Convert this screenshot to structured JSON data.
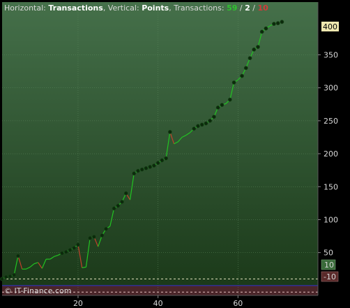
{
  "header": {
    "h_label": "Horizontal: ",
    "h_value": "Transactions",
    "v_label": ", Vertical: ",
    "v_value": "Points",
    "t_label": ", Transactions: ",
    "wins": "59",
    "sep1": " / ",
    "neutral": "2",
    "sep2": " / ",
    "losses": "10"
  },
  "footer": {
    "copyright": "© IT-Finance.com"
  },
  "colors": {
    "bg_top": "#45704a",
    "bg_bottom": "#1a3818",
    "loss_zone": "#4a2529",
    "up": "#22c422",
    "down": "#c2402a",
    "wins": "#2fc42f",
    "losses": "#d23a3a",
    "label_bg": "#f0e8b0",
    "zero_line": "#3030d0"
  },
  "chart_data": {
    "type": "line",
    "xlabel": "",
    "ylabel": "",
    "xlim": [
      1,
      80
    ],
    "ylim": [
      -15,
      430
    ],
    "x_ticks": [
      20,
      40,
      60
    ],
    "y_ticks": [
      50,
      100,
      150,
      200,
      250,
      300,
      350
    ],
    "last_value_label": "400",
    "upper_threshold": 10,
    "lower_threshold": -10,
    "upper_threshold_label": "10",
    "lower_threshold_label": "-10",
    "x": [
      1,
      2,
      3,
      4,
      5,
      6,
      7,
      8,
      9,
      10,
      11,
      12,
      13,
      14,
      15,
      16,
      17,
      18,
      19,
      20,
      21,
      22,
      23,
      24,
      25,
      26,
      27,
      28,
      29,
      30,
      31,
      32,
      33,
      34,
      35,
      36,
      37,
      38,
      39,
      40,
      41,
      42,
      43,
      44,
      45,
      46,
      47,
      48,
      49,
      50,
      51,
      52,
      53,
      54,
      55,
      56,
      57,
      58,
      59,
      60,
      61,
      62,
      63,
      64,
      65,
      66,
      67,
      68,
      69,
      70,
      71
    ],
    "values": [
      10,
      13,
      14,
      16,
      45,
      25,
      25,
      28,
      33,
      35,
      26,
      40,
      40,
      44,
      46,
      49,
      51,
      54,
      57,
      62,
      27,
      28,
      72,
      74,
      59,
      76,
      86,
      90,
      117,
      121,
      127,
      140,
      130,
      170,
      174,
      176,
      178,
      180,
      182,
      186,
      190,
      193,
      233,
      215,
      218,
      225,
      228,
      232,
      238,
      242,
      244,
      246,
      250,
      256,
      270,
      274,
      276,
      282,
      308,
      312,
      318,
      330,
      345,
      358,
      362,
      385,
      390,
      394,
      397,
      398,
      400
    ],
    "markers": [
      1,
      2,
      3,
      4,
      5,
      16,
      17,
      18,
      19,
      20,
      23,
      24,
      26,
      27,
      29,
      30,
      31,
      32,
      34,
      35,
      36,
      37,
      38,
      39,
      40,
      41,
      42,
      43,
      49,
      50,
      51,
      52,
      53,
      54,
      55,
      56,
      58,
      59,
      61,
      62,
      63,
      64,
      65,
      66,
      67,
      69,
      70,
      71,
      72,
      73
    ]
  }
}
